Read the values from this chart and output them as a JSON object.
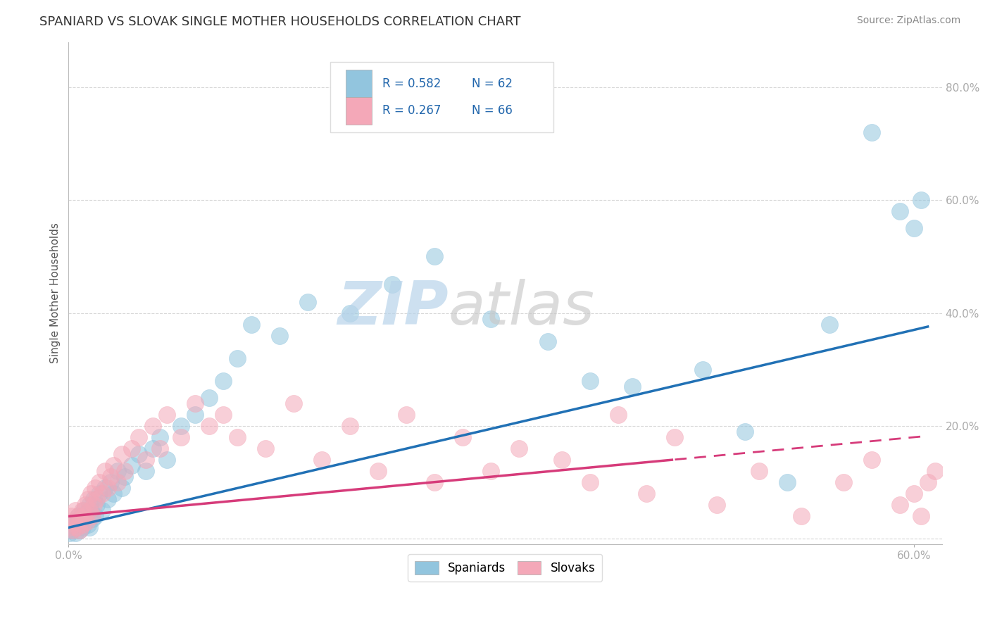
{
  "title": "SPANIARD VS SLOVAK SINGLE MOTHER HOUSEHOLDS CORRELATION CHART",
  "source": "Source: ZipAtlas.com",
  "ylabel": "Single Mother Households",
  "xlim": [
    0.0,
    0.62
  ],
  "ylim": [
    -0.01,
    0.88
  ],
  "spaniard_color": "#92c5de",
  "slovak_color": "#f4a8b8",
  "spaniard_line_color": "#2171b5",
  "slovak_line_solid_color": "#d63b7a",
  "slovak_line_dash_color": "#d63b7a",
  "legend_R_spaniard": "R = 0.582",
  "legend_N_spaniard": "N = 62",
  "legend_R_slovak": "R = 0.267",
  "legend_N_slovak": "N = 66",
  "spaniard_N": 62,
  "slovak_N": 66,
  "spaniard_R": 0.582,
  "slovak_R": 0.267,
  "background_color": "#ffffff",
  "grid_color": "#cccccc",
  "ytick_labels": [
    "",
    "20.0%",
    "40.0%",
    "60.0%",
    "80.0%"
  ],
  "ytick_values": [
    0.0,
    0.2,
    0.4,
    0.6,
    0.8
  ],
  "title_fontsize": 13,
  "source_fontsize": 10,
  "spaniard_scatter_x": [
    0.001,
    0.002,
    0.003,
    0.004,
    0.005,
    0.005,
    0.006,
    0.007,
    0.008,
    0.008,
    0.009,
    0.01,
    0.01,
    0.011,
    0.012,
    0.013,
    0.014,
    0.015,
    0.015,
    0.016,
    0.017,
    0.018,
    0.019,
    0.02,
    0.022,
    0.024,
    0.026,
    0.028,
    0.03,
    0.032,
    0.035,
    0.038,
    0.04,
    0.045,
    0.05,
    0.055,
    0.06,
    0.065,
    0.07,
    0.08,
    0.09,
    0.1,
    0.11,
    0.12,
    0.13,
    0.15,
    0.17,
    0.2,
    0.23,
    0.26,
    0.3,
    0.34,
    0.37,
    0.4,
    0.45,
    0.48,
    0.51,
    0.54,
    0.57,
    0.59,
    0.6,
    0.605
  ],
  "spaniard_scatter_y": [
    0.01,
    0.02,
    0.015,
    0.025,
    0.03,
    0.01,
    0.02,
    0.04,
    0.035,
    0.015,
    0.03,
    0.04,
    0.02,
    0.05,
    0.03,
    0.045,
    0.025,
    0.06,
    0.02,
    0.05,
    0.035,
    0.07,
    0.04,
    0.06,
    0.08,
    0.05,
    0.09,
    0.07,
    0.1,
    0.08,
    0.12,
    0.09,
    0.11,
    0.13,
    0.15,
    0.12,
    0.16,
    0.18,
    0.14,
    0.2,
    0.22,
    0.25,
    0.28,
    0.32,
    0.38,
    0.36,
    0.42,
    0.4,
    0.45,
    0.5,
    0.39,
    0.35,
    0.28,
    0.27,
    0.3,
    0.19,
    0.1,
    0.38,
    0.72,
    0.58,
    0.55,
    0.6
  ],
  "slovak_scatter_x": [
    0.001,
    0.002,
    0.003,
    0.004,
    0.005,
    0.006,
    0.007,
    0.008,
    0.009,
    0.01,
    0.01,
    0.011,
    0.012,
    0.013,
    0.014,
    0.015,
    0.016,
    0.017,
    0.018,
    0.019,
    0.02,
    0.022,
    0.024,
    0.026,
    0.028,
    0.03,
    0.032,
    0.035,
    0.038,
    0.04,
    0.045,
    0.05,
    0.055,
    0.06,
    0.065,
    0.07,
    0.08,
    0.09,
    0.1,
    0.11,
    0.12,
    0.14,
    0.16,
    0.18,
    0.2,
    0.22,
    0.24,
    0.26,
    0.28,
    0.3,
    0.32,
    0.35,
    0.37,
    0.39,
    0.41,
    0.43,
    0.46,
    0.49,
    0.52,
    0.55,
    0.57,
    0.59,
    0.6,
    0.605,
    0.61,
    0.615
  ],
  "slovak_scatter_y": [
    0.02,
    0.04,
    0.015,
    0.03,
    0.05,
    0.02,
    0.04,
    0.015,
    0.035,
    0.025,
    0.05,
    0.04,
    0.06,
    0.03,
    0.07,
    0.05,
    0.08,
    0.04,
    0.06,
    0.09,
    0.07,
    0.1,
    0.08,
    0.12,
    0.09,
    0.11,
    0.13,
    0.1,
    0.15,
    0.12,
    0.16,
    0.18,
    0.14,
    0.2,
    0.16,
    0.22,
    0.18,
    0.24,
    0.2,
    0.22,
    0.18,
    0.16,
    0.24,
    0.14,
    0.2,
    0.12,
    0.22,
    0.1,
    0.18,
    0.12,
    0.16,
    0.14,
    0.1,
    0.22,
    0.08,
    0.18,
    0.06,
    0.12,
    0.04,
    0.1,
    0.14,
    0.06,
    0.08,
    0.04,
    0.1,
    0.12
  ]
}
